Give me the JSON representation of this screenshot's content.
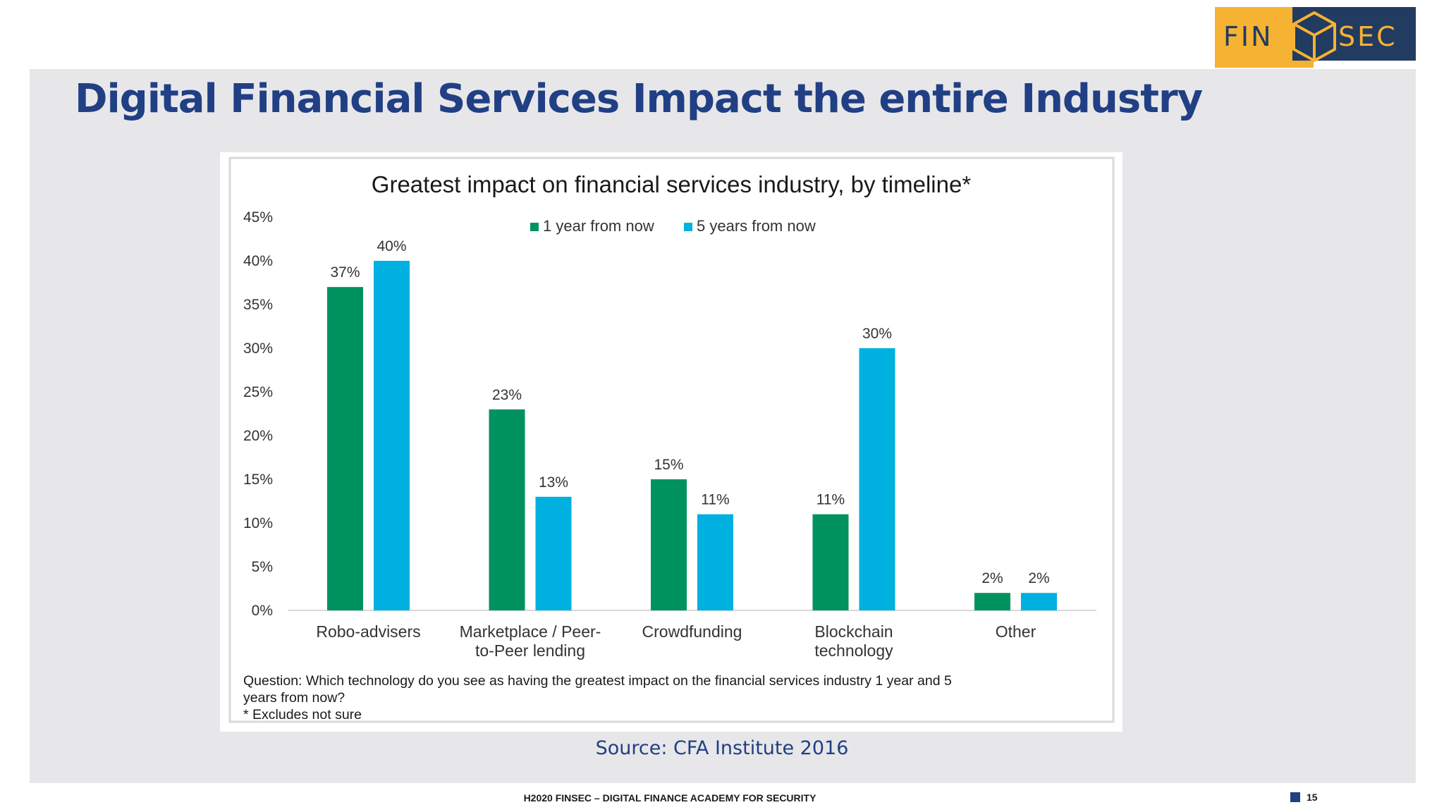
{
  "slide": {
    "title": "Digital Financial Services Impact the entire Industry",
    "source": "Source: CFA Institute 2016",
    "footer": "H2020 FINSEC – DIGITAL FINANCE ACADEMY FOR SECURITY",
    "page_number": "15"
  },
  "logo": {
    "left_text": "FIN",
    "right_text": "SEC",
    "icon": "cube-icon"
  },
  "colors": {
    "title": "#213f84",
    "series1": "#00925f",
    "series2": "#00b0e0",
    "logo_gold": "#f6b232",
    "logo_navy": "#213b61"
  },
  "chart_data": {
    "type": "bar",
    "title": "Greatest impact on financial services industry, by timeline*",
    "categories": [
      "Robo-advisers",
      "Marketplace / Peer-to-Peer lending",
      "Crowdfunding",
      "Blockchain technology",
      "Other"
    ],
    "category_lines": [
      [
        "Robo-advisers"
      ],
      [
        "Marketplace / Peer-",
        "to-Peer lending"
      ],
      [
        "Crowdfunding"
      ],
      [
        "Blockchain",
        "technology"
      ],
      [
        "Other"
      ]
    ],
    "series": [
      {
        "name": "1 year from now",
        "values": [
          37,
          23,
          15,
          11,
          2
        ],
        "labels": [
          "37%",
          "23%",
          "15%",
          "11%",
          "2%"
        ]
      },
      {
        "name": "5 years from now",
        "values": [
          40,
          13,
          11,
          30,
          2
        ],
        "labels": [
          "40%",
          "13%",
          "11%",
          "30%",
          "2%"
        ]
      }
    ],
    "yticks": [
      "0%",
      "5%",
      "10%",
      "15%",
      "20%",
      "25%",
      "30%",
      "35%",
      "40%",
      "45%"
    ],
    "ylim": [
      0,
      45
    ],
    "xlabel": "",
    "ylabel": "",
    "legend_position": "top-center",
    "grid": false,
    "notes": [
      "Question: Which technology do you see as having the greatest impact on the financial services industry 1 year and 5",
      "years from now?",
      "* Excludes not sure"
    ]
  }
}
